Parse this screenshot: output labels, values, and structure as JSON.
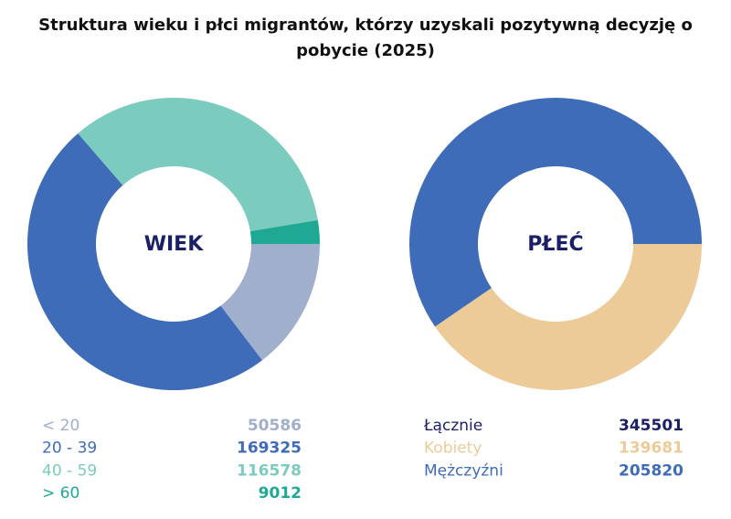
{
  "title": "Struktura wieku i płci migrantów, którzy uzyskali pozytywną decyzję o pobycie (2025)",
  "chart_data": [
    {
      "type": "donut",
      "center_label": "WIEK",
      "categories": [
        "< 20",
        "20 - 39",
        "40 - 59",
        "> 60"
      ],
      "values": [
        50586,
        169325,
        116578,
        9012
      ],
      "colors": [
        "#a0afcb",
        "#3f6cb9",
        "#7bcbbf",
        "#1fa994"
      ]
    },
    {
      "type": "donut",
      "center_label": "PŁEĆ",
      "total": {
        "label": "Łącznie",
        "value": 345501,
        "color": "#1b1f66"
      },
      "categories": [
        "Kobiety",
        "Mężczyźni"
      ],
      "values": [
        139681,
        205820
      ],
      "colors": [
        "#eccb98",
        "#3f6cb9"
      ]
    }
  ]
}
